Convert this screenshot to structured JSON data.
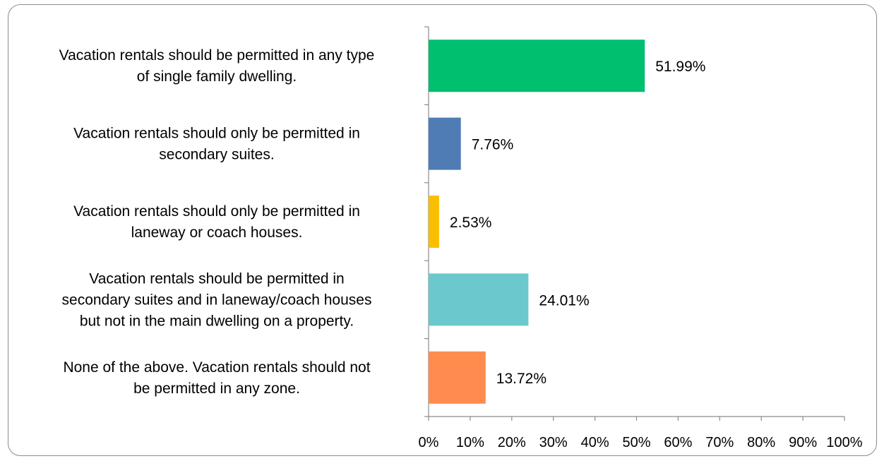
{
  "chart_data": {
    "type": "bar",
    "orientation": "horizontal",
    "categories": [
      [
        "Vacation rentals should be permitted in any type",
        "of single family dwelling."
      ],
      [
        "Vacation rentals should only be permitted in",
        "secondary suites."
      ],
      [
        "Vacation rentals should only be permitted in",
        "laneway or coach houses."
      ],
      [
        "Vacation rentals should be permitted in",
        "secondary suites and in laneway/coach houses",
        "but not in the main dwelling on a property."
      ],
      [
        "None of the above.  Vacation rentals should not",
        "be permitted in any zone."
      ]
    ],
    "values": [
      51.99,
      7.76,
      2.53,
      24.01,
      13.72
    ],
    "value_labels": [
      "51.99%",
      "7.76%",
      "2.53%",
      "24.01%",
      "13.72%"
    ],
    "colors": [
      "#00bf6f",
      "#507cb6",
      "#f9be00",
      "#6bc8cd",
      "#ff8b4f"
    ],
    "xlim": [
      0,
      100
    ],
    "x_ticks": [
      "0%",
      "10%",
      "20%",
      "30%",
      "40%",
      "50%",
      "60%",
      "70%",
      "80%",
      "90%",
      "100%"
    ],
    "grid": false,
    "legend": "none"
  }
}
